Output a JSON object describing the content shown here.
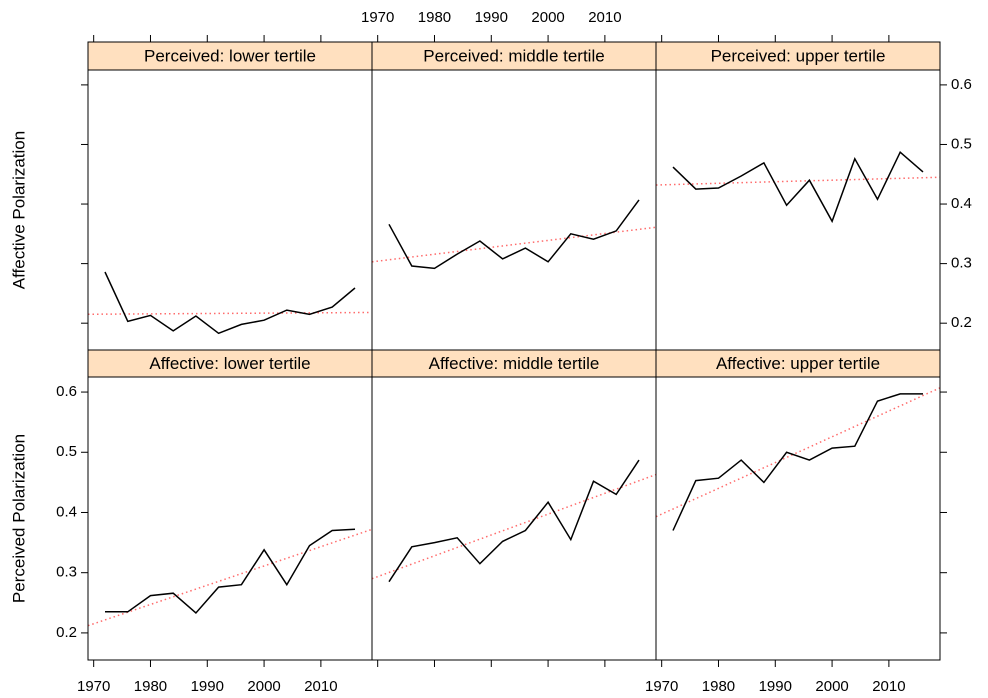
{
  "chart_data": {
    "type": "line",
    "x": [
      1972,
      1976,
      1980,
      1984,
      1988,
      1992,
      1996,
      2000,
      2004,
      2008,
      2012,
      2016
    ],
    "xlim": [
      1969,
      2019
    ],
    "xticks": [
      1970,
      1980,
      1990,
      2000,
      2010
    ],
    "ylim": [
      0.155,
      0.625
    ],
    "yticks": [
      0.2,
      0.3,
      0.4,
      0.5,
      0.6
    ],
    "line_color": "#000000",
    "trend_color": "#ff6b6b",
    "strip_color": "#ffe0bf",
    "rows": [
      {
        "ylabel": "Affective Polarization",
        "panels": [
          {
            "title": "Perceived: lower tertile",
            "values": [
              0.286,
              0.203,
              0.213,
              0.187,
              0.212,
              0.183,
              0.198,
              0.205,
              0.222,
              0.215,
              0.227,
              0.259
            ],
            "trend": [
              0.215,
              0.218
            ]
          },
          {
            "title": "Perceived: middle tertile",
            "values": [
              0.366,
              0.296,
              0.292,
              0.316,
              0.338,
              0.308,
              0.326,
              0.303,
              0.35,
              0.341,
              0.355,
              0.407
            ],
            "trend": [
              0.303,
              0.361
            ]
          },
          {
            "title": "Perceived: upper tertile",
            "values": [
              0.462,
              0.425,
              0.427,
              0.447,
              0.469,
              0.398,
              0.44,
              0.371,
              0.476,
              0.408,
              0.487,
              0.454
            ],
            "trend": [
              0.432,
              0.445
            ]
          }
        ]
      },
      {
        "ylabel": "Perceived Polarization",
        "panels": [
          {
            "title": "Affective: lower tertile",
            "values": [
              0.235,
              0.235,
              0.262,
              0.266,
              0.233,
              0.276,
              0.28,
              0.338,
              0.28,
              0.345,
              0.37,
              0.372
            ],
            "trend": [
              0.212,
              0.372
            ]
          },
          {
            "title": "Affective: middle tertile",
            "values": [
              0.285,
              0.343,
              0.35,
              0.358,
              0.315,
              0.352,
              0.37,
              0.417,
              0.355,
              0.452,
              0.43,
              0.487
            ],
            "trend": [
              0.29,
              0.463
            ]
          },
          {
            "title": "Affective: upper tertile",
            "values": [
              0.37,
              0.453,
              0.457,
              0.487,
              0.45,
              0.5,
              0.487,
              0.507,
              0.51,
              0.585,
              0.597,
              0.597
            ],
            "trend": [
              0.393,
              0.607
            ]
          }
        ]
      }
    ]
  }
}
